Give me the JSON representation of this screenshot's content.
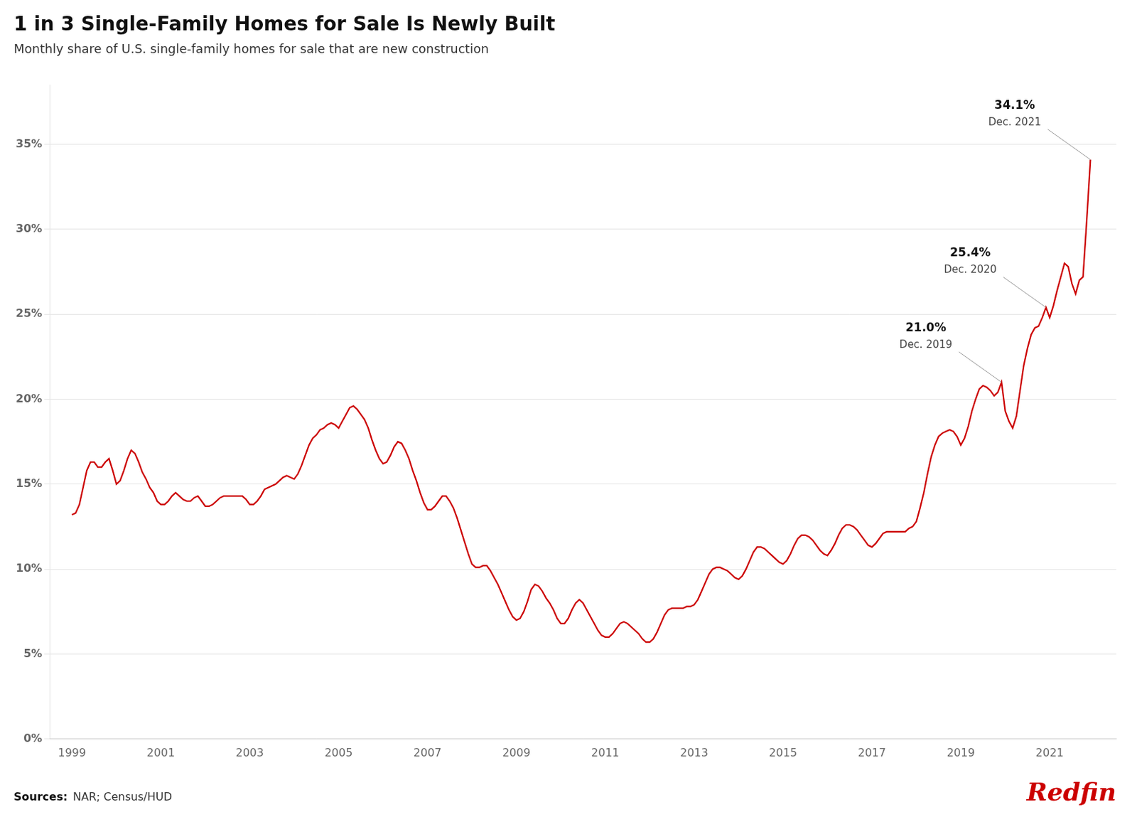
{
  "chart_data": {
    "type": "line",
    "title": "1 in 3 Single-Family Homes for Sale Is Newly Built",
    "subtitle": "Monthly share of U.S. single-family homes for sale that are new construction",
    "color": "#CC0000",
    "xlim": [
      1998.5,
      2022.5
    ],
    "xticks": [
      1999,
      2001,
      2003,
      2005,
      2007,
      2009,
      2011,
      2013,
      2015,
      2017,
      2019,
      2021
    ],
    "ylim": [
      0,
      0.385
    ],
    "yticks": [
      {
        "value": 0.0,
        "label": "0%"
      },
      {
        "value": 0.05,
        "label": "5%"
      },
      {
        "value": 0.1,
        "label": "10%"
      },
      {
        "value": 0.15,
        "label": "15%"
      },
      {
        "value": 0.2,
        "label": "20%"
      },
      {
        "value": 0.25,
        "label": "25%"
      },
      {
        "value": 0.3,
        "label": "30%"
      },
      {
        "value": 0.35,
        "label": "35%"
      }
    ],
    "grid": true,
    "x": [
      1999,
      1999.083,
      1999.167,
      1999.25,
      1999.333,
      1999.417,
      1999.5,
      1999.583,
      1999.667,
      1999.75,
      1999.833,
      1999.917,
      2000,
      2000.083,
      2000.167,
      2000.25,
      2000.333,
      2000.417,
      2000.5,
      2000.583,
      2000.667,
      2000.75,
      2000.833,
      2000.917,
      2001,
      2001.083,
      2001.167,
      2001.25,
      2001.333,
      2001.417,
      2001.5,
      2001.583,
      2001.667,
      2001.75,
      2001.833,
      2001.917,
      2002,
      2002.083,
      2002.167,
      2002.25,
      2002.333,
      2002.417,
      2002.5,
      2002.583,
      2002.667,
      2002.75,
      2002.833,
      2002.917,
      2003,
      2003.083,
      2003.167,
      2003.25,
      2003.333,
      2003.417,
      2003.5,
      2003.583,
      2003.667,
      2003.75,
      2003.833,
      2003.917,
      2004,
      2004.083,
      2004.167,
      2004.25,
      2004.333,
      2004.417,
      2004.5,
      2004.583,
      2004.667,
      2004.75,
      2004.833,
      2004.917,
      2005,
      2005.083,
      2005.167,
      2005.25,
      2005.333,
      2005.417,
      2005.5,
      2005.583,
      2005.667,
      2005.75,
      2005.833,
      2005.917,
      2006,
      2006.083,
      2006.167,
      2006.25,
      2006.333,
      2006.417,
      2006.5,
      2006.583,
      2006.667,
      2006.75,
      2006.833,
      2006.917,
      2007,
      2007.083,
      2007.167,
      2007.25,
      2007.333,
      2007.417,
      2007.5,
      2007.583,
      2007.667,
      2007.75,
      2007.833,
      2007.917,
      2008,
      2008.083,
      2008.167,
      2008.25,
      2008.333,
      2008.417,
      2008.5,
      2008.583,
      2008.667,
      2008.75,
      2008.833,
      2008.917,
      2009,
      2009.083,
      2009.167,
      2009.25,
      2009.333,
      2009.417,
      2009.5,
      2009.583,
      2009.667,
      2009.75,
      2009.833,
      2009.917,
      2010,
      2010.083,
      2010.167,
      2010.25,
      2010.333,
      2010.417,
      2010.5,
      2010.583,
      2010.667,
      2010.75,
      2010.833,
      2010.917,
      2011,
      2011.083,
      2011.167,
      2011.25,
      2011.333,
      2011.417,
      2011.5,
      2011.583,
      2011.667,
      2011.75,
      2011.833,
      2011.917,
      2012,
      2012.083,
      2012.167,
      2012.25,
      2012.333,
      2012.417,
      2012.5,
      2012.583,
      2012.667,
      2012.75,
      2012.833,
      2012.917,
      2013,
      2013.083,
      2013.167,
      2013.25,
      2013.333,
      2013.417,
      2013.5,
      2013.583,
      2013.667,
      2013.75,
      2013.833,
      2013.917,
      2014,
      2014.083,
      2014.167,
      2014.25,
      2014.333,
      2014.417,
      2014.5,
      2014.583,
      2014.667,
      2014.75,
      2014.833,
      2014.917,
      2015,
      2015.083,
      2015.167,
      2015.25,
      2015.333,
      2015.417,
      2015.5,
      2015.583,
      2015.667,
      2015.75,
      2015.833,
      2015.917,
      2016,
      2016.083,
      2016.167,
      2016.25,
      2016.333,
      2016.417,
      2016.5,
      2016.583,
      2016.667,
      2016.75,
      2016.833,
      2016.917,
      2017,
      2017.083,
      2017.167,
      2017.25,
      2017.333,
      2017.417,
      2017.5,
      2017.583,
      2017.667,
      2017.75,
      2017.833,
      2017.917,
      2018,
      2018.083,
      2018.167,
      2018.25,
      2018.333,
      2018.417,
      2018.5,
      2018.583,
      2018.667,
      2018.75,
      2018.833,
      2018.917,
      2019,
      2019.083,
      2019.167,
      2019.25,
      2019.333,
      2019.417,
      2019.5,
      2019.583,
      2019.667,
      2019.75,
      2019.833,
      2019.917,
      2020,
      2020.083,
      2020.167,
      2020.25,
      2020.333,
      2020.417,
      2020.5,
      2020.583,
      2020.667,
      2020.75,
      2020.833,
      2020.917,
      2021,
      2021.083,
      2021.167,
      2021.25,
      2021.333,
      2021.417,
      2021.5,
      2021.583,
      2021.667,
      2021.75,
      2021.833,
      2021.917
    ],
    "values": [
      0.132,
      0.133,
      0.138,
      0.148,
      0.158,
      0.163,
      0.163,
      0.16,
      0.16,
      0.163,
      0.165,
      0.158,
      0.15,
      0.152,
      0.158,
      0.165,
      0.17,
      0.168,
      0.163,
      0.157,
      0.153,
      0.148,
      0.145,
      0.14,
      0.138,
      0.138,
      0.14,
      0.143,
      0.145,
      0.143,
      0.141,
      0.14,
      0.14,
      0.142,
      0.143,
      0.14,
      0.137,
      0.137,
      0.138,
      0.14,
      0.142,
      0.143,
      0.143,
      0.143,
      0.143,
      0.143,
      0.143,
      0.141,
      0.138,
      0.138,
      0.14,
      0.143,
      0.147,
      0.148,
      0.149,
      0.15,
      0.152,
      0.154,
      0.155,
      0.154,
      0.153,
      0.156,
      0.161,
      0.167,
      0.173,
      0.177,
      0.179,
      0.182,
      0.183,
      0.185,
      0.186,
      0.185,
      0.183,
      0.187,
      0.191,
      0.195,
      0.196,
      0.194,
      0.191,
      0.188,
      0.183,
      0.176,
      0.17,
      0.165,
      0.162,
      0.163,
      0.167,
      0.172,
      0.175,
      0.174,
      0.17,
      0.165,
      0.158,
      0.152,
      0.145,
      0.139,
      0.135,
      0.135,
      0.137,
      0.14,
      0.143,
      0.143,
      0.14,
      0.136,
      0.13,
      0.123,
      0.116,
      0.109,
      0.103,
      0.101,
      0.101,
      0.102,
      0.102,
      0.099,
      0.095,
      0.091,
      0.086,
      0.081,
      0.076,
      0.072,
      0.07,
      0.071,
      0.075,
      0.081,
      0.088,
      0.091,
      0.09,
      0.087,
      0.083,
      0.08,
      0.076,
      0.071,
      0.068,
      0.068,
      0.071,
      0.076,
      0.08,
      0.082,
      0.08,
      0.076,
      0.072,
      0.068,
      0.064,
      0.061,
      0.06,
      0.06,
      0.062,
      0.065,
      0.068,
      0.069,
      0.068,
      0.066,
      0.064,
      0.062,
      0.059,
      0.057,
      0.057,
      0.059,
      0.063,
      0.068,
      0.073,
      0.076,
      0.077,
      0.077,
      0.077,
      0.077,
      0.078,
      0.078,
      0.079,
      0.082,
      0.087,
      0.092,
      0.097,
      0.1,
      0.101,
      0.101,
      0.1,
      0.099,
      0.097,
      0.095,
      0.094,
      0.096,
      0.1,
      0.105,
      0.11,
      0.113,
      0.113,
      0.112,
      0.11,
      0.108,
      0.106,
      0.104,
      0.103,
      0.105,
      0.109,
      0.114,
      0.118,
      0.12,
      0.12,
      0.119,
      0.117,
      0.114,
      0.111,
      0.109,
      0.108,
      0.111,
      0.115,
      0.12,
      0.124,
      0.126,
      0.126,
      0.125,
      0.123,
      0.12,
      0.117,
      0.114,
      0.113,
      0.115,
      0.118,
      0.121,
      0.122,
      0.122,
      0.122,
      0.122,
      0.122,
      0.122,
      0.124,
      0.125,
      0.128,
      0.136,
      0.145,
      0.156,
      0.166,
      0.173,
      0.178,
      0.18,
      0.181,
      0.182,
      0.181,
      0.178,
      0.173,
      0.177,
      0.184,
      0.193,
      0.2,
      0.206,
      0.208,
      0.207,
      0.205,
      0.202,
      0.204,
      0.21,
      0.193,
      0.187,
      0.183,
      0.19,
      0.205,
      0.22,
      0.23,
      0.238,
      0.242,
      0.243,
      0.248,
      0.254,
      0.248,
      0.255,
      0.264,
      0.272,
      0.28,
      0.278,
      0.268,
      0.262,
      0.27,
      0.272,
      0.305,
      0.341
    ],
    "annotations": [
      {
        "text": "21.0%",
        "note": "Dec. 2019",
        "x": 2019.917,
        "y": 0.21
      },
      {
        "text": "25.4%",
        "note": "Dec. 2020",
        "x": 2020.917,
        "y": 0.254
      },
      {
        "text": "34.1%",
        "note": "Dec. 2021",
        "x": 2021.917,
        "y": 0.341
      }
    ],
    "source": {
      "label": "Sources:",
      "text": "NAR; Census/HUD"
    },
    "logo": "Redfin"
  }
}
